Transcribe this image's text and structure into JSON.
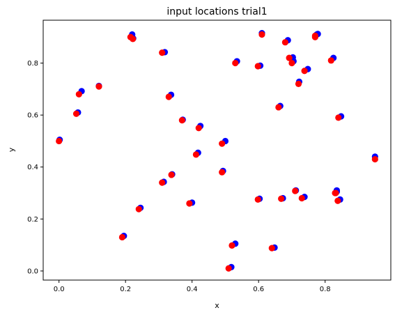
{
  "chart_data": {
    "type": "scatter",
    "title": "input locations trial1",
    "xlabel": "x",
    "ylabel": "y",
    "xlim": [
      -0.0475,
      0.9975
    ],
    "ylim": [
      -0.035,
      0.965
    ],
    "xticks": [
      0.0,
      0.2,
      0.4,
      0.6,
      0.8
    ],
    "yticks": [
      0.0,
      0.2,
      0.4,
      0.6,
      0.8
    ],
    "xtick_labels": [
      "0.0",
      "0.2",
      "0.4",
      "0.6",
      "0.8"
    ],
    "ytick_labels": [
      "0.0",
      "0.2",
      "0.4",
      "0.6",
      "0.8"
    ],
    "grid": false,
    "legend": "none",
    "series": [
      {
        "color": "#0000ff",
        "points": [
          [
            0.002,
            0.505
          ],
          [
            0.057,
            0.61
          ],
          [
            0.068,
            0.692
          ],
          [
            0.12,
            0.712
          ],
          [
            0.195,
            0.135
          ],
          [
            0.22,
            0.91
          ],
          [
            0.223,
            0.895
          ],
          [
            0.245,
            0.243
          ],
          [
            0.315,
            0.343
          ],
          [
            0.318,
            0.842
          ],
          [
            0.337,
            0.678
          ],
          [
            0.34,
            0.372
          ],
          [
            0.372,
            0.582
          ],
          [
            0.4,
            0.263
          ],
          [
            0.418,
            0.455
          ],
          [
            0.425,
            0.558
          ],
          [
            0.493,
            0.385
          ],
          [
            0.5,
            0.5
          ],
          [
            0.518,
            0.015
          ],
          [
            0.53,
            0.105
          ],
          [
            0.535,
            0.807
          ],
          [
            0.603,
            0.278
          ],
          [
            0.605,
            0.79
          ],
          [
            0.61,
            0.915
          ],
          [
            0.648,
            0.09
          ],
          [
            0.665,
            0.635
          ],
          [
            0.673,
            0.28
          ],
          [
            0.688,
            0.888
          ],
          [
            0.703,
            0.822
          ],
          [
            0.705,
            0.807
          ],
          [
            0.712,
            0.31
          ],
          [
            0.722,
            0.728
          ],
          [
            0.738,
            0.285
          ],
          [
            0.748,
            0.777
          ],
          [
            0.775,
            0.91
          ],
          [
            0.778,
            0.912
          ],
          [
            0.825,
            0.82
          ],
          [
            0.835,
            0.31
          ],
          [
            0.835,
            0.305
          ],
          [
            0.845,
            0.275
          ],
          [
            0.848,
            0.595
          ],
          [
            0.95,
            0.44
          ]
        ]
      },
      {
        "color": "#ff0000",
        "points": [
          [
            0.0,
            0.5
          ],
          [
            0.052,
            0.605
          ],
          [
            0.06,
            0.68
          ],
          [
            0.12,
            0.71
          ],
          [
            0.19,
            0.13
          ],
          [
            0.215,
            0.9
          ],
          [
            0.222,
            0.893
          ],
          [
            0.24,
            0.238
          ],
          [
            0.31,
            0.34
          ],
          [
            0.31,
            0.84
          ],
          [
            0.33,
            0.67
          ],
          [
            0.338,
            0.37
          ],
          [
            0.37,
            0.58
          ],
          [
            0.392,
            0.26
          ],
          [
            0.412,
            0.448
          ],
          [
            0.42,
            0.55
          ],
          [
            0.49,
            0.38
          ],
          [
            0.49,
            0.49
          ],
          [
            0.51,
            0.01
          ],
          [
            0.52,
            0.098
          ],
          [
            0.53,
            0.8
          ],
          [
            0.598,
            0.275
          ],
          [
            0.598,
            0.788
          ],
          [
            0.61,
            0.91
          ],
          [
            0.64,
            0.088
          ],
          [
            0.66,
            0.63
          ],
          [
            0.668,
            0.278
          ],
          [
            0.68,
            0.88
          ],
          [
            0.692,
            0.82
          ],
          [
            0.7,
            0.8
          ],
          [
            0.71,
            0.308
          ],
          [
            0.72,
            0.72
          ],
          [
            0.73,
            0.28
          ],
          [
            0.738,
            0.77
          ],
          [
            0.77,
            0.905
          ],
          [
            0.77,
            0.9
          ],
          [
            0.818,
            0.81
          ],
          [
            0.832,
            0.3
          ],
          [
            0.83,
            0.3
          ],
          [
            0.838,
            0.27
          ],
          [
            0.84,
            0.59
          ],
          [
            0.95,
            0.43
          ]
        ]
      }
    ]
  }
}
